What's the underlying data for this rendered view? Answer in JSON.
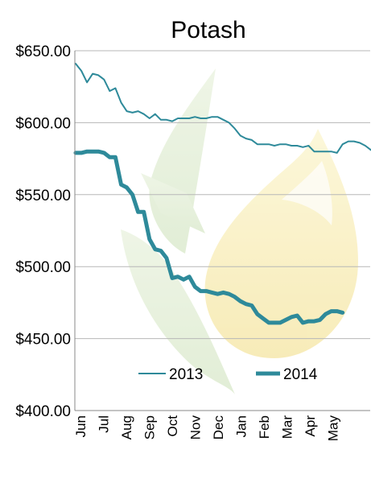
{
  "chart_data": {
    "type": "line",
    "title": "Potash",
    "xlabel": "",
    "ylabel": "",
    "ylim": [
      400,
      650
    ],
    "y_tick_labels": [
      "$400.00",
      "$450.00",
      "$500.00",
      "$550.00",
      "$600.00",
      "$650.00"
    ],
    "y_ticks": [
      400,
      450,
      500,
      550,
      600,
      650
    ],
    "x_tick_labels": [
      "Jun",
      "Jul",
      "Aug",
      "Sep",
      "Oct",
      "Nov",
      "Dec",
      "Jan",
      "Feb",
      "Mar",
      "Apr",
      "May"
    ],
    "grid": "horizontal",
    "legend_position": "bottom",
    "colors": {
      "line": "#2e8a9a",
      "grid": "#b7b7b7",
      "axis": "#888888"
    },
    "series": [
      {
        "name": "2013",
        "style": "thin",
        "values": [
          641,
          636,
          628,
          634,
          633,
          630,
          622,
          624,
          614,
          608,
          607,
          608,
          606,
          603,
          606,
          602,
          602,
          601,
          603,
          603,
          603,
          604,
          603,
          603,
          604,
          604,
          602,
          600,
          596,
          591,
          589,
          588,
          585,
          585,
          585,
          584,
          585,
          585,
          584,
          584,
          583,
          584,
          580,
          580,
          580,
          580,
          579,
          585,
          587,
          587,
          586,
          584,
          581
        ]
      },
      {
        "name": "2014",
        "style": "thick",
        "values": [
          579,
          579,
          580,
          580,
          580,
          579,
          576,
          576,
          557,
          555,
          550,
          538,
          538,
          519,
          512,
          511,
          506,
          492,
          493,
          491,
          493,
          486,
          483,
          483,
          482,
          481,
          482,
          481,
          479,
          476,
          474,
          473,
          467,
          464,
          461,
          461,
          461,
          463,
          465,
          466,
          461,
          462,
          462,
          463,
          467,
          469,
          469,
          468
        ]
      }
    ]
  }
}
